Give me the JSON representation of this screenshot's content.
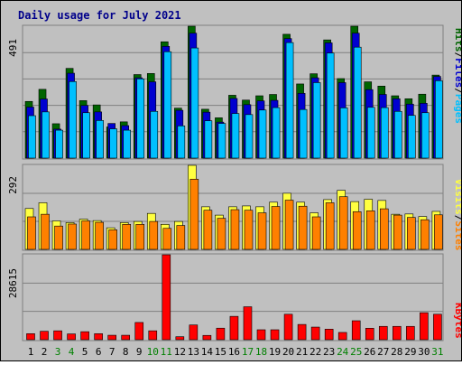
{
  "colors": {
    "background": "#c0c0c0",
    "hits": "#006400",
    "files": "#0000d0",
    "pages": "#00c0ff",
    "visits": "#ffff40",
    "sites": "#ff8000",
    "kbytes": "#ff0000",
    "title": "#00008b",
    "weekend_day": "#008000"
  },
  "header": {
    "title": "Daily usage for July 2021"
  },
  "legend": {
    "pages": "Pages",
    "files": "Files",
    "hits": "Hits",
    "sites": "Sites",
    "visits": "Visits",
    "kbytes": "KBytes",
    "sep": "/"
  },
  "chart_data": [
    {
      "type": "bar",
      "title": "Daily usage for July 2021",
      "categories": [
        "1",
        "2",
        "3",
        "4",
        "5",
        "6",
        "7",
        "8",
        "9",
        "10",
        "11",
        "12",
        "13",
        "14",
        "15",
        "16",
        "17",
        "18",
        "19",
        "20",
        "21",
        "22",
        "23",
        "24",
        "25",
        "26",
        "27",
        "28",
        "29",
        "30",
        "31"
      ],
      "weekend_days": [
        "3",
        "4",
        "10",
        "11",
        "17",
        "18",
        "24",
        "25",
        "31"
      ],
      "ylim": [
        0,
        491
      ],
      "ytick_label": "491",
      "grid": true,
      "series": [
        {
          "name": "Hits",
          "values": [
            211,
            256,
            128,
            334,
            214,
            198,
            116,
            135,
            311,
            315,
            433,
            186,
            491,
            182,
            150,
            234,
            216,
            232,
            237,
            461,
            276,
            314,
            440,
            296,
            491,
            284,
            268,
            232,
            221,
            238,
            309
          ]
        },
        {
          "name": "Files",
          "values": [
            190,
            220,
            108,
            316,
            196,
            172,
            129,
            121,
            299,
            284,
            416,
            178,
            465,
            171,
            134,
            222,
            199,
            213,
            215,
            445,
            241,
            299,
            429,
            281,
            465,
            255,
            237,
            221,
            201,
            204,
            304
          ]
        },
        {
          "name": "Pages",
          "values": [
            158,
            172,
            104,
            285,
            169,
            140,
            109,
            104,
            295,
            174,
            396,
            120,
            410,
            139,
            129,
            166,
            162,
            179,
            188,
            430,
            181,
            281,
            391,
            187,
            413,
            189,
            188,
            174,
            159,
            169,
            288
          ]
        }
      ]
    },
    {
      "type": "bar",
      "ylim": [
        0,
        292
      ],
      "ytick_label": "292",
      "grid": true,
      "series": [
        {
          "name": "Visits",
          "values": [
            142,
            162,
            99,
            93,
            105,
            100,
            75,
            93,
            97,
            125,
            87,
            97,
            292,
            148,
            119,
            148,
            151,
            148,
            164,
            195,
            164,
            127,
            173,
            205,
            166,
            174,
            170,
            122,
            123,
            114,
            132
          ]
        },
        {
          "name": "Sites",
          "values": [
            113,
            122,
            81,
            88,
            99,
            94,
            68,
            87,
            87,
            97,
            73,
            83,
            244,
            136,
            108,
            138,
            136,
            127,
            149,
            171,
            150,
            113,
            162,
            183,
            131,
            134,
            141,
            119,
            111,
            103,
            120
          ]
        }
      ]
    },
    {
      "type": "bar",
      "ylim": [
        0,
        28615
      ],
      "ytick_label": "28615",
      "grid": true,
      "series": [
        {
          "name": "KBytes",
          "values": [
            2030,
            2840,
            3000,
            1950,
            2700,
            2030,
            1500,
            1500,
            5810,
            3000,
            28615,
            1010,
            4970,
            1450,
            3890,
            7870,
            11100,
            3350,
            3350,
            8580,
            5140,
            4250,
            3550,
            2450,
            6390,
            3870,
            4490,
            4490,
            4490,
            9100,
            8580
          ]
        }
      ]
    }
  ]
}
